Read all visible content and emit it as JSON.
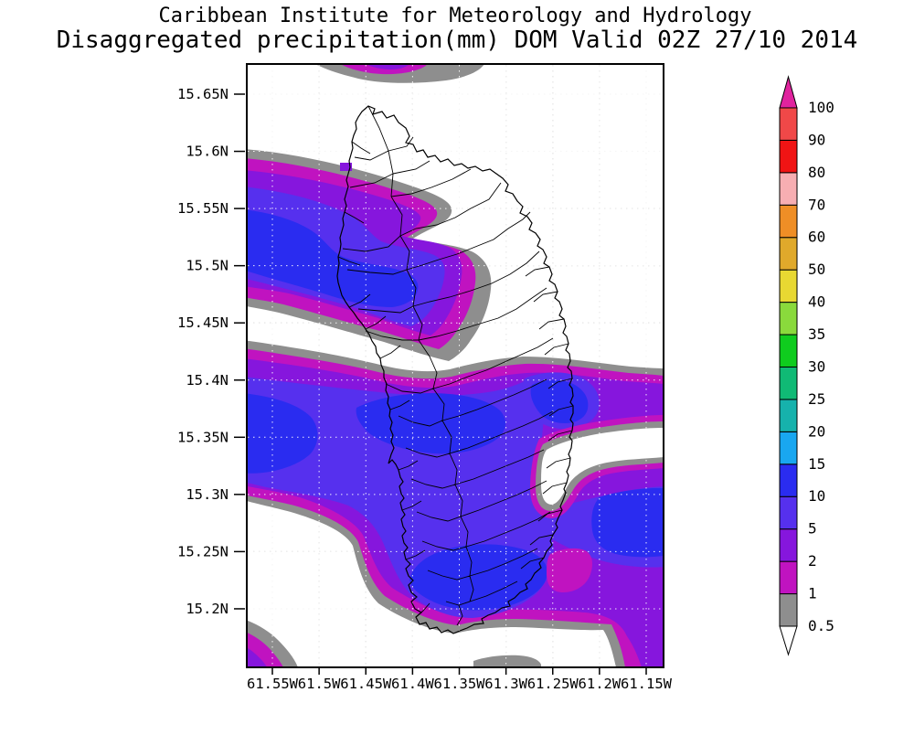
{
  "title": {
    "line1": "Caribbean Institute for Meteorology and Hydrology",
    "line2": "Disaggregated precipitation(mm) DOM Valid 02Z 27/10 2014"
  },
  "axes": {
    "lat_ticks": [
      "15.65N",
      "15.6N",
      "15.55N",
      "15.5N",
      "15.45N",
      "15.4N",
      "15.35N",
      "15.3N",
      "15.25N",
      "15.2N"
    ],
    "lon_ticks": [
      "61.55W",
      "61.5W",
      "61.45W",
      "61.4W",
      "61.35W",
      "61.3W",
      "61.25W",
      "61.2W",
      "61.15W"
    ]
  },
  "colorbar": {
    "levels": [
      "0.5",
      "1",
      "2",
      "5",
      "10",
      "15",
      "20",
      "25",
      "30",
      "35",
      "40",
      "50",
      "60",
      "70",
      "80",
      "90",
      "100"
    ],
    "segment_colors": [
      "#8e8e8e",
      "#c013c0",
      "#8616dd",
      "#5630ee",
      "#2a2cf0",
      "#19a7f0",
      "#16b2ac",
      "#10ba75",
      "#0fcc1e",
      "#8ada3c",
      "#e8d832",
      "#e0a92b",
      "#ef8e26",
      "#f7aeb2",
      "#f01414",
      "#f04848"
    ],
    "over_arrow_color": "#e0239e",
    "under_arrow_color": "#ffffff"
  },
  "palette": {
    "0.5": "#8e8e8e",
    "1": "#c013c0",
    "2": "#8616dd",
    "5": "#5630ee",
    "10": "#2a2cf0",
    "15": "#19a7f0",
    "20": "#16b2ac",
    "25": "#10ba75",
    "30": "#0fcc1e",
    "35": "#8ada3c",
    "40": "#e8d832",
    "50": "#e0a92b",
    "60": "#ef8e26",
    "70": "#f7aeb2",
    "80": "#f01414",
    "90": "#f04848",
    "over": "#e0239e",
    "under": "#ffffff"
  },
  "chart_data": {
    "type": "contour-map",
    "title": "Caribbean Institute for Meteorology and Hydrology",
    "subtitle": "Disaggregated precipitation(mm) DOM Valid 02Z 27/10 2014",
    "variable": "precipitation",
    "units": "mm",
    "region": "DOM (Dominica)",
    "valid_time": "02Z 27/10 2014",
    "x_axis": {
      "label": "longitude",
      "ticks": [
        "61.55W",
        "61.5W",
        "61.45W",
        "61.4W",
        "61.35W",
        "61.3W",
        "61.25W",
        "61.2W",
        "61.15W"
      ]
    },
    "y_axis": {
      "label": "latitude",
      "ticks": [
        "15.65N",
        "15.6N",
        "15.55N",
        "15.5N",
        "15.45N",
        "15.4N",
        "15.35N",
        "15.3N",
        "15.25N",
        "15.2N"
      ]
    },
    "grid": "dotted",
    "legend_position": "right-colorbar",
    "contour_levels": [
      0.5,
      1,
      2,
      5,
      10,
      15,
      20,
      25,
      30,
      35,
      40,
      50,
      60,
      70,
      80,
      90,
      100
    ],
    "max_filled_value_on_map": 15,
    "features": [
      "Rain band across north ~15.5N-15.6N with 10-15mm core near west edge and over NW Dominica",
      "Large band over central/southern Dominica ~15.25N-15.45N with 10-15mm cores west edge, island centre, south tip and east edge ~15.3N",
      "Dry pocket (<0.5mm) east coast ~15.35N extending to east edge",
      "Thin 0.5-2mm band along top edge and bottom-left corner, small dry pocket at bottom ~61.3W"
    ]
  }
}
